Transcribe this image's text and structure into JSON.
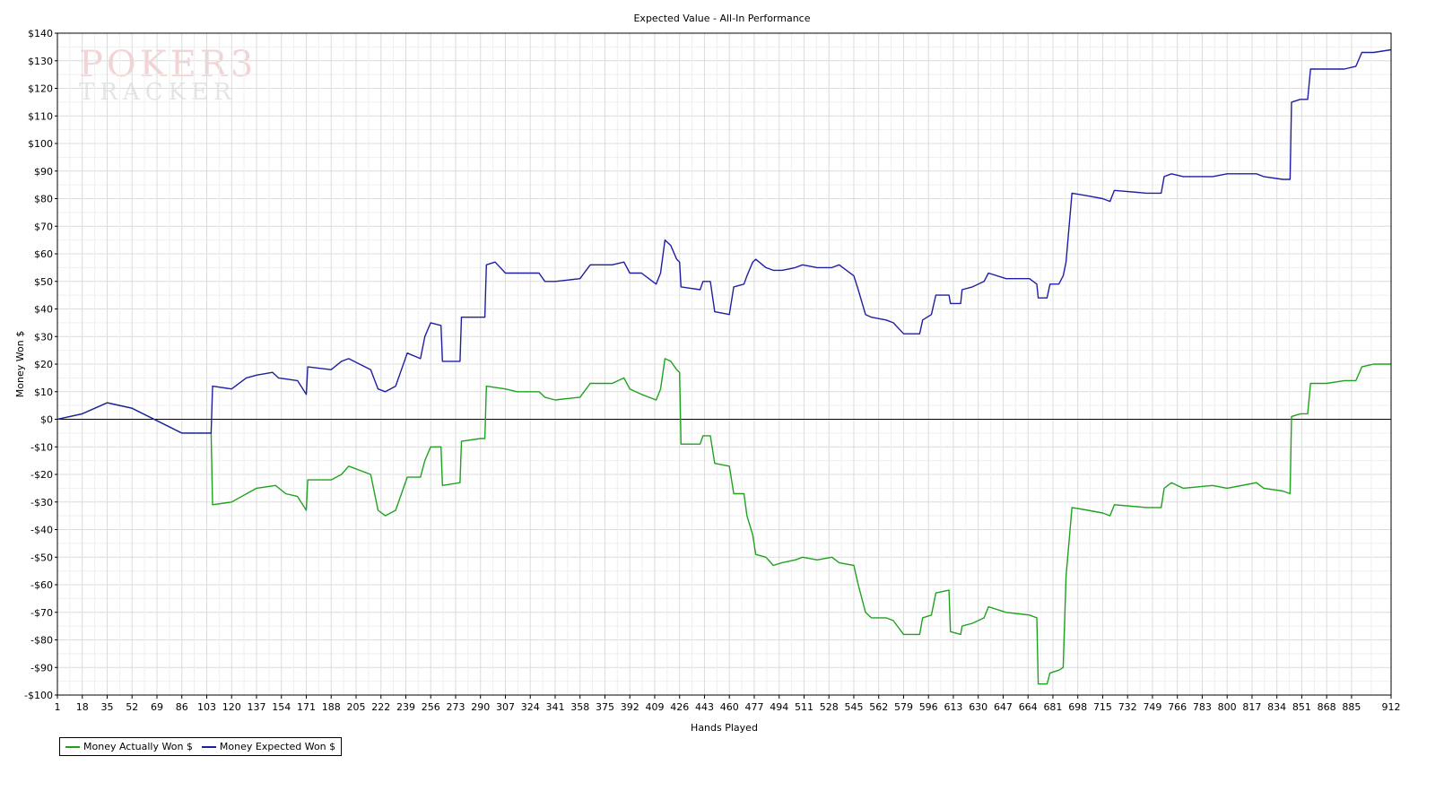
{
  "watermark": {
    "line1": "POKER3",
    "line2": "TRACKER"
  },
  "chart_data": {
    "type": "line",
    "title": "Expected Value - All-In Performance",
    "xlabel": "Hands Played",
    "ylabel": "Money Won $",
    "xlim": [
      1,
      912
    ],
    "ylim": [
      -100,
      140
    ],
    "x_ticks": [
      1,
      18,
      35,
      52,
      69,
      86,
      103,
      120,
      137,
      154,
      171,
      188,
      205,
      222,
      239,
      256,
      273,
      290,
      307,
      324,
      341,
      358,
      375,
      392,
      409,
      426,
      443,
      460,
      477,
      494,
      511,
      528,
      545,
      562,
      579,
      596,
      613,
      630,
      647,
      664,
      681,
      698,
      715,
      732,
      749,
      766,
      783,
      800,
      817,
      834,
      851,
      868,
      885,
      912
    ],
    "y_ticks": [
      -100,
      -90,
      -80,
      -70,
      -60,
      -50,
      -40,
      -30,
      -20,
      -10,
      0,
      10,
      20,
      30,
      40,
      50,
      60,
      70,
      80,
      90,
      100,
      110,
      120,
      130,
      140
    ],
    "y_tick_format": "dollar",
    "grid": true,
    "zero_line": true,
    "legend_position": "bottom-left",
    "series": [
      {
        "name": "Money Actually Won $",
        "color": "#1fa31f",
        "points": [
          [
            1,
            0
          ],
          [
            18,
            2
          ],
          [
            35,
            6
          ],
          [
            52,
            4
          ],
          [
            86,
            -5
          ],
          [
            106,
            -5
          ],
          [
            107,
            -31
          ],
          [
            120,
            -30
          ],
          [
            137,
            -25
          ],
          [
            150,
            -24
          ],
          [
            157,
            -27
          ],
          [
            165,
            -28
          ],
          [
            171,
            -33
          ],
          [
            172,
            -22
          ],
          [
            188,
            -22
          ],
          [
            195,
            -20
          ],
          [
            200,
            -17
          ],
          [
            215,
            -20
          ],
          [
            220,
            -33
          ],
          [
            225,
            -35
          ],
          [
            232,
            -33
          ],
          [
            240,
            -21
          ],
          [
            249,
            -21
          ],
          [
            252,
            -15
          ],
          [
            256,
            -10
          ],
          [
            263,
            -10
          ],
          [
            264,
            -24
          ],
          [
            276,
            -23
          ],
          [
            277,
            -8
          ],
          [
            290,
            -7
          ],
          [
            293,
            -7
          ],
          [
            294,
            12
          ],
          [
            307,
            11
          ],
          [
            315,
            10
          ],
          [
            330,
            10
          ],
          [
            334,
            8
          ],
          [
            341,
            7
          ],
          [
            358,
            8
          ],
          [
            365,
            13
          ],
          [
            380,
            13
          ],
          [
            388,
            15
          ],
          [
            392,
            11
          ],
          [
            400,
            9
          ],
          [
            405,
            8
          ],
          [
            410,
            7
          ],
          [
            413,
            11
          ],
          [
            416,
            22
          ],
          [
            420,
            21
          ],
          [
            424,
            18
          ],
          [
            426,
            17
          ],
          [
            427,
            -9
          ],
          [
            440,
            -9
          ],
          [
            442,
            -6
          ],
          [
            447,
            -6
          ],
          [
            450,
            -16
          ],
          [
            460,
            -17
          ],
          [
            463,
            -27
          ],
          [
            470,
            -27
          ],
          [
            472,
            -35
          ],
          [
            476,
            -42
          ],
          [
            478,
            -49
          ],
          [
            485,
            -50
          ],
          [
            490,
            -53
          ],
          [
            496,
            -52
          ],
          [
            505,
            -51
          ],
          [
            510,
            -50
          ],
          [
            520,
            -51
          ],
          [
            530,
            -50
          ],
          [
            535,
            -52
          ],
          [
            545,
            -53
          ],
          [
            548,
            -60
          ],
          [
            553,
            -70
          ],
          [
            557,
            -72
          ],
          [
            567,
            -72
          ],
          [
            572,
            -73
          ],
          [
            579,
            -78
          ],
          [
            590,
            -78
          ],
          [
            592,
            -72
          ],
          [
            598,
            -71
          ],
          [
            601,
            -63
          ],
          [
            610,
            -62
          ],
          [
            611,
            -77
          ],
          [
            618,
            -78
          ],
          [
            619,
            -75
          ],
          [
            626,
            -74
          ],
          [
            634,
            -72
          ],
          [
            637,
            -68
          ],
          [
            649,
            -70
          ],
          [
            665,
            -71
          ],
          [
            670,
            -72
          ],
          [
            671,
            -96
          ],
          [
            677,
            -96
          ],
          [
            679,
            -92
          ],
          [
            685,
            -91
          ],
          [
            688,
            -90
          ],
          [
            690,
            -57
          ],
          [
            694,
            -32
          ],
          [
            705,
            -33
          ],
          [
            715,
            -34
          ],
          [
            720,
            -35
          ],
          [
            723,
            -31
          ],
          [
            745,
            -32
          ],
          [
            755,
            -32
          ],
          [
            757,
            -25
          ],
          [
            762,
            -23
          ],
          [
            770,
            -25
          ],
          [
            790,
            -24
          ],
          [
            800,
            -25
          ],
          [
            820,
            -23
          ],
          [
            825,
            -25
          ],
          [
            838,
            -26
          ],
          [
            843,
            -27
          ],
          [
            844,
            1
          ],
          [
            850,
            2
          ],
          [
            855,
            2
          ],
          [
            857,
            13
          ],
          [
            868,
            13
          ],
          [
            880,
            14
          ],
          [
            888,
            14
          ],
          [
            892,
            19
          ],
          [
            900,
            20
          ],
          [
            912,
            20
          ]
        ]
      },
      {
        "name": "Money Expected Won $",
        "color": "#1f1fa3",
        "points": [
          [
            1,
            0
          ],
          [
            18,
            2
          ],
          [
            35,
            6
          ],
          [
            52,
            4
          ],
          [
            86,
            -5
          ],
          [
            106,
            -5
          ],
          [
            107,
            12
          ],
          [
            120,
            11
          ],
          [
            130,
            15
          ],
          [
            137,
            16
          ],
          [
            148,
            17
          ],
          [
            152,
            15
          ],
          [
            165,
            14
          ],
          [
            171,
            9
          ],
          [
            172,
            19
          ],
          [
            188,
            18
          ],
          [
            195,
            21
          ],
          [
            200,
            22
          ],
          [
            215,
            18
          ],
          [
            220,
            11
          ],
          [
            225,
            10
          ],
          [
            232,
            12
          ],
          [
            240,
            24
          ],
          [
            249,
            22
          ],
          [
            252,
            30
          ],
          [
            256,
            35
          ],
          [
            263,
            34
          ],
          [
            264,
            21
          ],
          [
            276,
            21
          ],
          [
            277,
            37
          ],
          [
            290,
            37
          ],
          [
            293,
            37
          ],
          [
            294,
            56
          ],
          [
            300,
            57
          ],
          [
            307,
            53
          ],
          [
            315,
            53
          ],
          [
            330,
            53
          ],
          [
            334,
            50
          ],
          [
            341,
            50
          ],
          [
            358,
            51
          ],
          [
            365,
            56
          ],
          [
            380,
            56
          ],
          [
            388,
            57
          ],
          [
            392,
            53
          ],
          [
            400,
            53
          ],
          [
            405,
            51
          ],
          [
            410,
            49
          ],
          [
            413,
            53
          ],
          [
            416,
            65
          ],
          [
            420,
            63
          ],
          [
            424,
            58
          ],
          [
            426,
            57
          ],
          [
            427,
            48
          ],
          [
            440,
            47
          ],
          [
            442,
            50
          ],
          [
            447,
            50
          ],
          [
            450,
            39
          ],
          [
            460,
            38
          ],
          [
            463,
            48
          ],
          [
            470,
            49
          ],
          [
            472,
            52
          ],
          [
            476,
            57
          ],
          [
            478,
            58
          ],
          [
            485,
            55
          ],
          [
            490,
            54
          ],
          [
            496,
            54
          ],
          [
            505,
            55
          ],
          [
            510,
            56
          ],
          [
            520,
            55
          ],
          [
            530,
            55
          ],
          [
            535,
            56
          ],
          [
            545,
            52
          ],
          [
            548,
            47
          ],
          [
            553,
            38
          ],
          [
            557,
            37
          ],
          [
            567,
            36
          ],
          [
            572,
            35
          ],
          [
            579,
            31
          ],
          [
            590,
            31
          ],
          [
            592,
            36
          ],
          [
            598,
            38
          ],
          [
            601,
            45
          ],
          [
            610,
            45
          ],
          [
            611,
            42
          ],
          [
            618,
            42
          ],
          [
            619,
            47
          ],
          [
            626,
            48
          ],
          [
            634,
            50
          ],
          [
            637,
            53
          ],
          [
            649,
            51
          ],
          [
            665,
            51
          ],
          [
            670,
            49
          ],
          [
            671,
            44
          ],
          [
            677,
            44
          ],
          [
            679,
            49
          ],
          [
            685,
            49
          ],
          [
            688,
            52
          ],
          [
            690,
            57
          ],
          [
            694,
            82
          ],
          [
            705,
            81
          ],
          [
            715,
            80
          ],
          [
            720,
            79
          ],
          [
            723,
            83
          ],
          [
            745,
            82
          ],
          [
            755,
            82
          ],
          [
            757,
            88
          ],
          [
            762,
            89
          ],
          [
            770,
            88
          ],
          [
            790,
            88
          ],
          [
            800,
            89
          ],
          [
            820,
            89
          ],
          [
            825,
            88
          ],
          [
            838,
            87
          ],
          [
            843,
            87
          ],
          [
            844,
            115
          ],
          [
            850,
            116
          ],
          [
            855,
            116
          ],
          [
            857,
            127
          ],
          [
            868,
            127
          ],
          [
            880,
            127
          ],
          [
            888,
            128
          ],
          [
            892,
            133
          ],
          [
            900,
            133
          ],
          [
            912,
            134
          ]
        ]
      }
    ]
  }
}
